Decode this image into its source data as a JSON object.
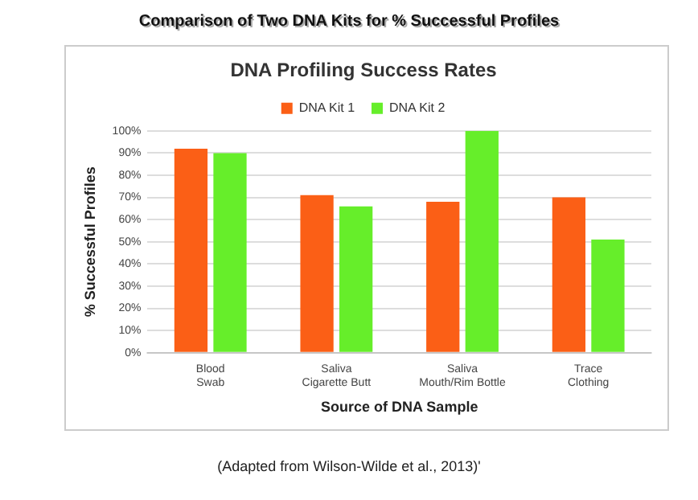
{
  "chart_data": {
    "type": "bar",
    "title": "Comparison of Two DNA Kits for % Successful Profiles",
    "subtitle": "DNA Profiling Success Rates",
    "categories": [
      "Blood\nSwab",
      "Saliva\nCigarette Butt",
      "Saliva\nMouth/Rim Bottle",
      "Trace\nClothing"
    ],
    "series": [
      {
        "name": "DNA Kit 1",
        "color": "#fb5f16",
        "values": [
          92,
          71,
          68,
          70
        ]
      },
      {
        "name": "DNA Kit 2",
        "color": "#66ee2a",
        "values": [
          90,
          66,
          100,
          51
        ]
      }
    ],
    "xlabel": "Source of DNA Sample",
    "ylabel": "% Successful Profiles",
    "ylim": [
      0,
      100
    ],
    "yticks": [
      {
        "value": 0,
        "label": "0%"
      },
      {
        "value": 10,
        "label": "10%"
      },
      {
        "value": 20,
        "label": "20%"
      },
      {
        "value": 30,
        "label": "30%"
      },
      {
        "value": 40,
        "label": "40%"
      },
      {
        "value": 50,
        "label": "50%"
      },
      {
        "value": 60,
        "label": "60%"
      },
      {
        "value": 70,
        "label": "70%"
      },
      {
        "value": 80,
        "label": "80%"
      },
      {
        "value": 90,
        "label": "90%"
      },
      {
        "value": 100,
        "label": "100%"
      }
    ],
    "grid": "y",
    "legend": "top",
    "annotations": [
      "(Adapted from Wilson-Wilde et al., 2013)'"
    ]
  }
}
